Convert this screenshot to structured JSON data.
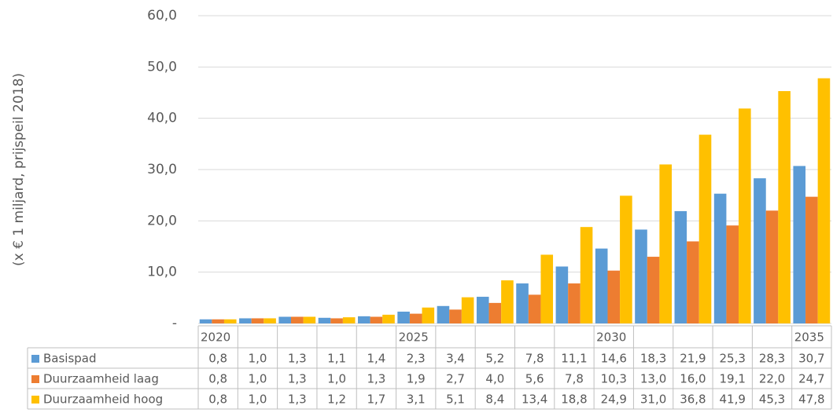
{
  "chart_data": {
    "type": "bar",
    "y_label": "(x € 1 miljard, prijspeil 2018)",
    "categories": [
      "2020",
      null,
      null,
      null,
      null,
      "2025",
      null,
      null,
      null,
      null,
      "2030",
      null,
      null,
      null,
      null,
      "2035"
    ],
    "series": [
      {
        "name": "Basispad",
        "color": "#5b9bd5",
        "values": [
          0.8,
          1.0,
          1.3,
          1.1,
          1.4,
          2.3,
          3.4,
          5.2,
          7.8,
          11.1,
          14.6,
          18.3,
          21.9,
          25.3,
          28.3,
          30.7
        ],
        "value_labels": [
          "0,8",
          "1,0",
          "1,3",
          "1,1",
          "1,4",
          "2,3",
          "3,4",
          "5,2",
          "7,8",
          "11,1",
          "14,6",
          "18,3",
          "21,9",
          "25,3",
          "28,3",
          "30,7"
        ]
      },
      {
        "name": "Duurzaamheid laag",
        "color": "#ed7d31",
        "values": [
          0.8,
          1.0,
          1.3,
          1.0,
          1.3,
          1.9,
          2.7,
          4.0,
          5.6,
          7.8,
          10.3,
          13.0,
          16.0,
          19.1,
          22.0,
          24.7
        ],
        "value_labels": [
          "0,8",
          "1,0",
          "1,3",
          "1,0",
          "1,3",
          "1,9",
          "2,7",
          "4,0",
          "5,6",
          "7,8",
          "10,3",
          "13,0",
          "16,0",
          "19,1",
          "22,0",
          "24,7"
        ]
      },
      {
        "name": "Duurzaamheid hoog",
        "color": "#ffc000",
        "values": [
          0.8,
          1.0,
          1.3,
          1.2,
          1.7,
          3.1,
          5.1,
          8.4,
          13.4,
          18.8,
          24.9,
          31.0,
          36.8,
          41.9,
          45.3,
          47.8
        ],
        "value_labels": [
          "0,8",
          "1,0",
          "1,3",
          "1,2",
          "1,7",
          "3,1",
          "5,1",
          "8,4",
          "13,4",
          "18,8",
          "24,9",
          "31,0",
          "36,8",
          "41,9",
          "45,3",
          "47,8"
        ]
      }
    ],
    "ylim": [
      0,
      60
    ],
    "yticks": [
      {
        "value": 0,
        "label": "-"
      },
      {
        "value": 10,
        "label": "10,0"
      },
      {
        "value": 20,
        "label": "20,0"
      },
      {
        "value": 30,
        "label": "30,0"
      },
      {
        "value": 40,
        "label": "40,0"
      },
      {
        "value": 50,
        "label": "50,0"
      },
      {
        "value": 60,
        "label": "60,0"
      }
    ],
    "grid": true
  }
}
